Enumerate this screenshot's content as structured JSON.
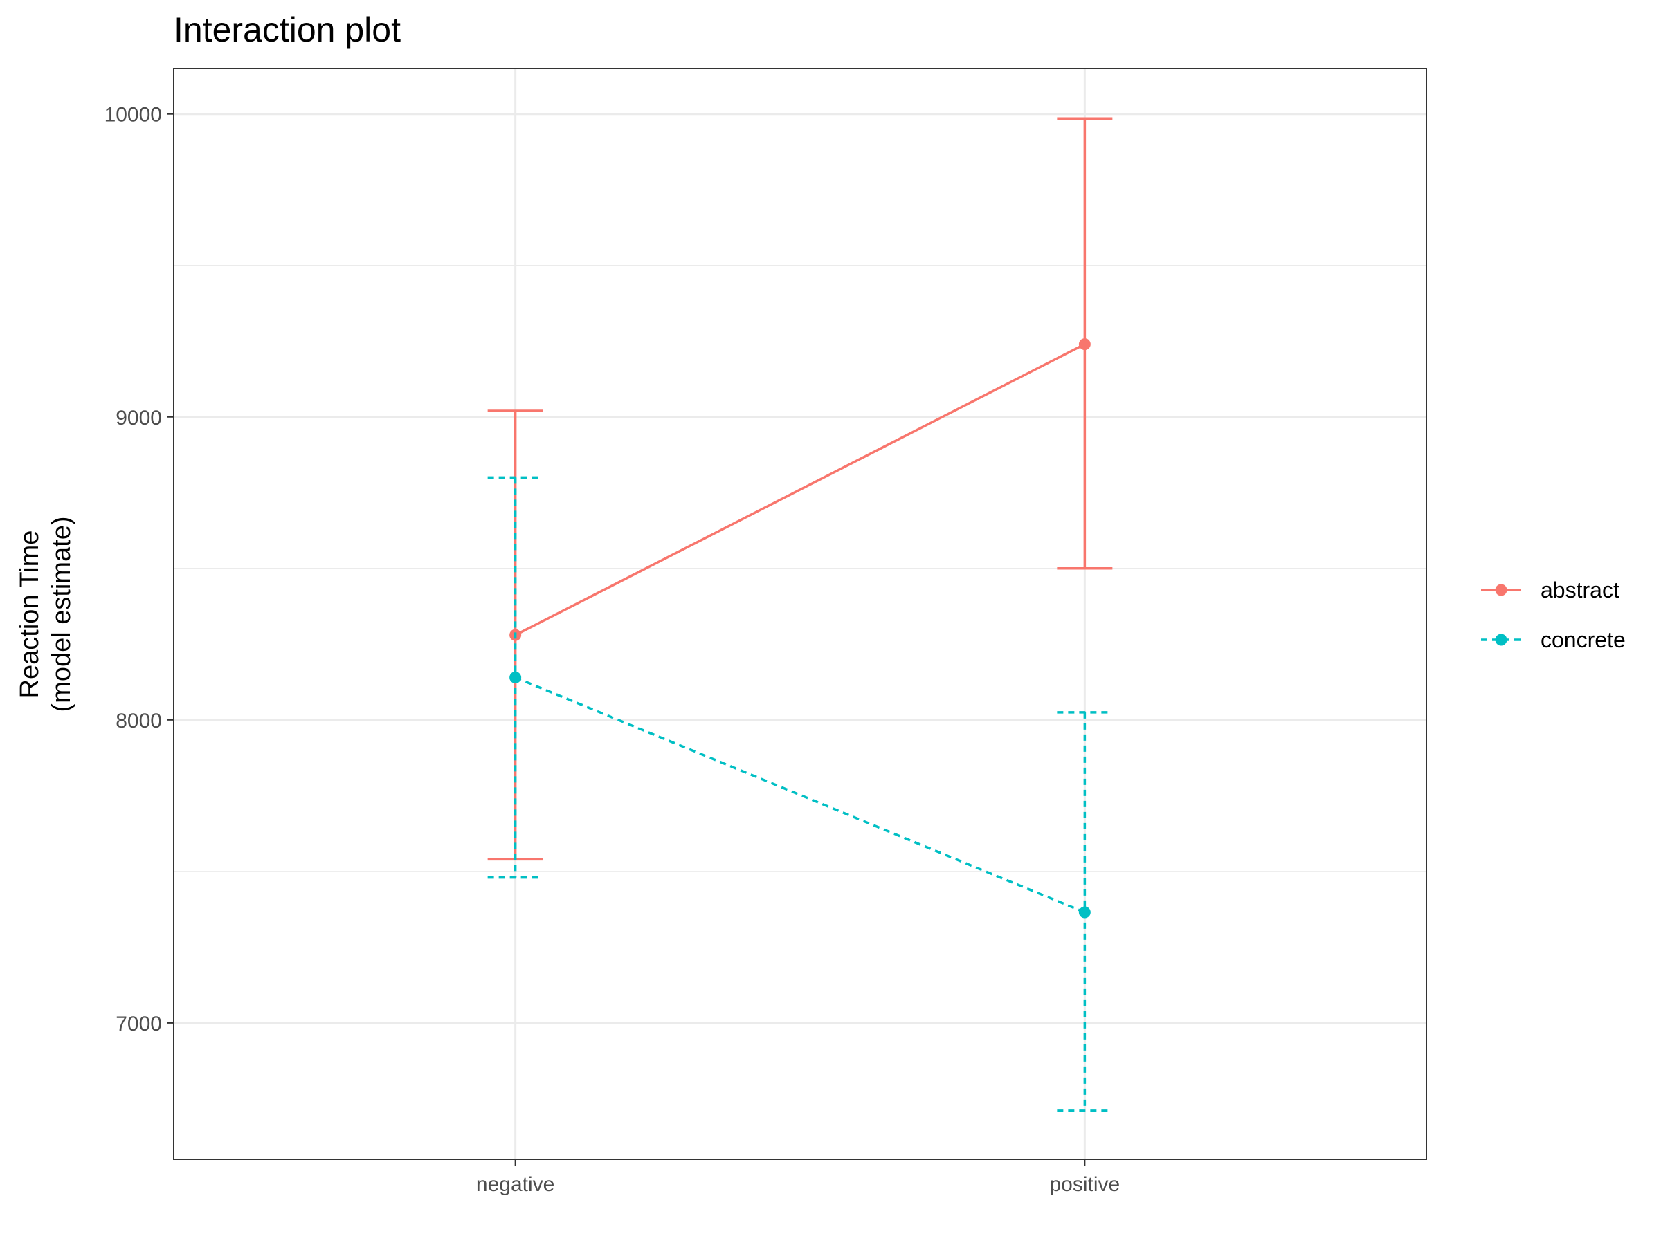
{
  "chart_data": {
    "type": "line",
    "title": "Interaction plot",
    "xlabel": "",
    "ylabel_lines": [
      "Reaction Time",
      "(model estimate)"
    ],
    "categories": [
      "negative",
      "positive"
    ],
    "ylim": [
      6550,
      10150
    ],
    "yticks": [
      7000,
      8000,
      9000,
      10000
    ],
    "yminor": [
      7500,
      8500,
      9500
    ],
    "grid": true,
    "legend_position": "right",
    "series": [
      {
        "name": "abstract",
        "color": "#F8766D",
        "dash": "solid",
        "values": [
          8280,
          9240
        ],
        "lower": [
          7540,
          8500
        ],
        "upper": [
          9020,
          9985
        ]
      },
      {
        "name": "concrete",
        "color": "#00BFC4",
        "dash": "dotted",
        "values": [
          8140,
          7365
        ],
        "lower": [
          7480,
          6710
        ],
        "upper": [
          8800,
          8025
        ]
      }
    ]
  }
}
